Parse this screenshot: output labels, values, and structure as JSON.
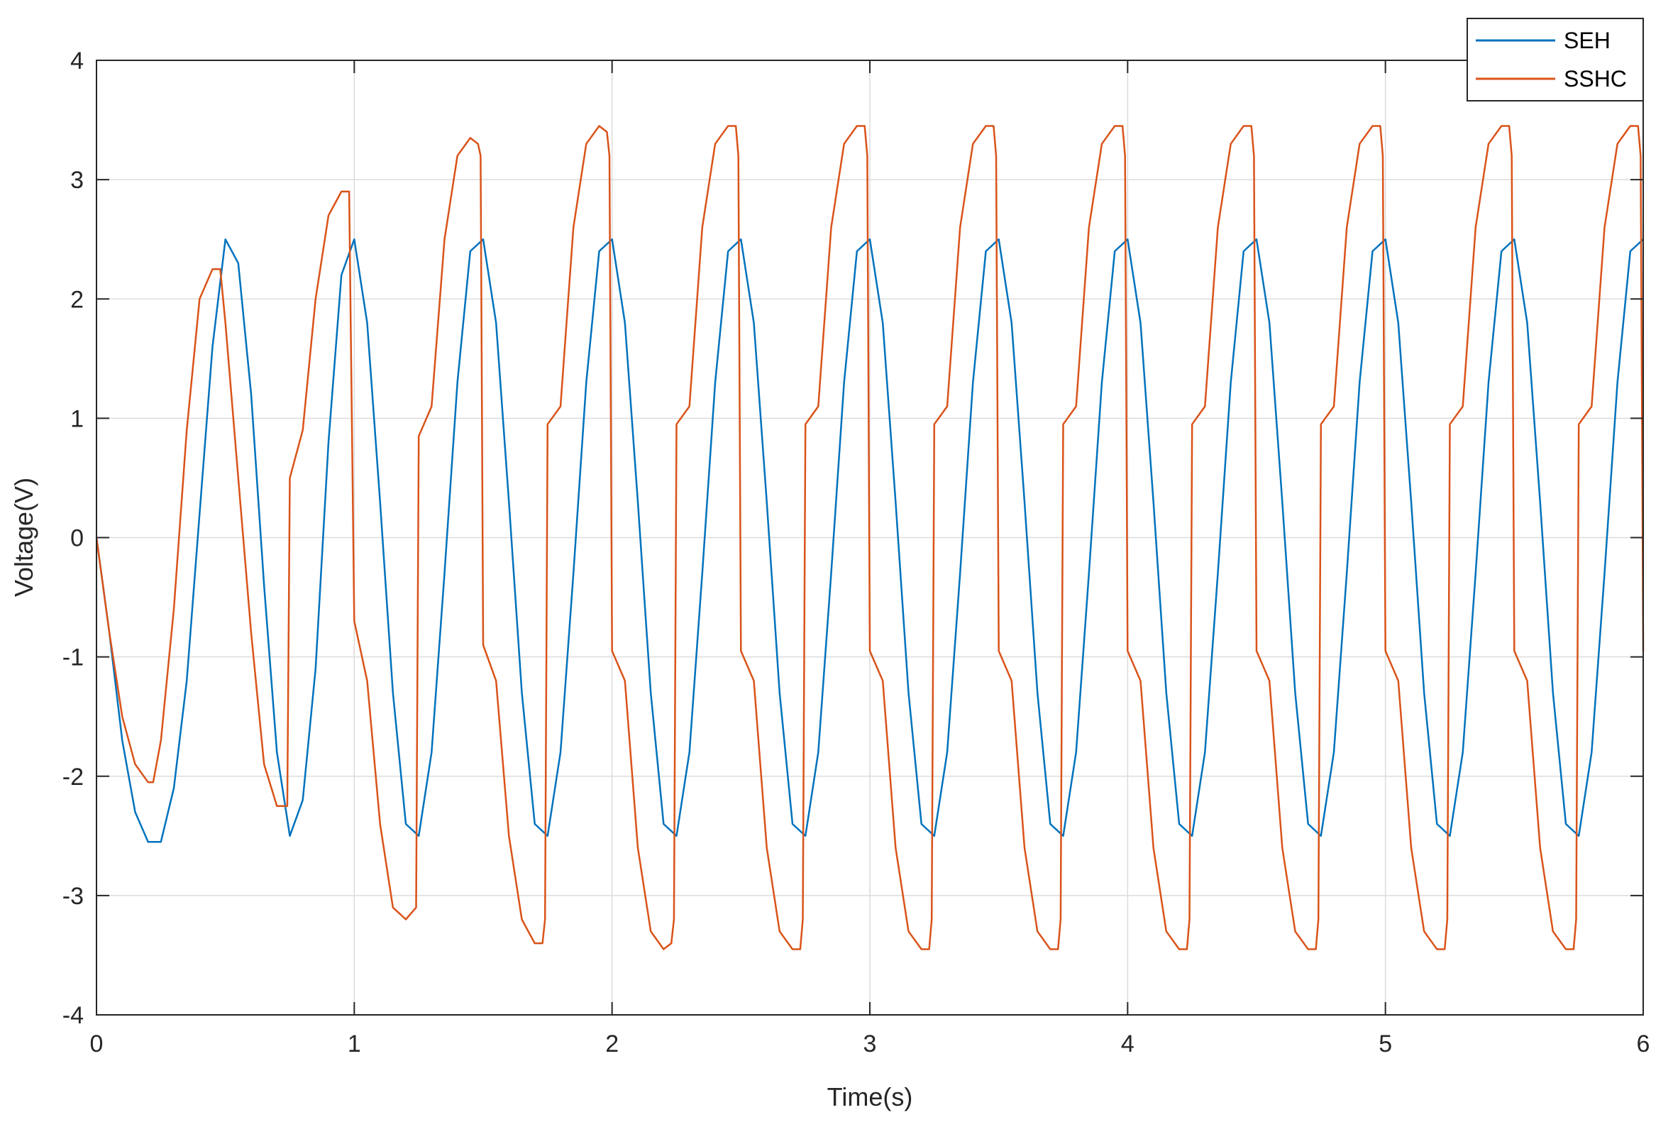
{
  "chart_data": {
    "type": "line",
    "title": "",
    "xlabel": "Time(s)",
    "ylabel": "Voltage(V)",
    "xlim": [
      0,
      6
    ],
    "ylim": [
      -4,
      4
    ],
    "xticks": [
      0,
      1,
      2,
      3,
      4,
      5,
      6
    ],
    "yticks": [
      -4,
      -3,
      -2,
      -1,
      0,
      1,
      2,
      3,
      4
    ],
    "xtick_labels": [
      "0",
      "1",
      "2",
      "3",
      "4",
      "5",
      "6"
    ],
    "ytick_labels": [
      "-4",
      "-3",
      "-2",
      "-1",
      "0",
      "1",
      "2",
      "3",
      "4"
    ],
    "grid": true,
    "legend_position": "top-right",
    "series": [
      {
        "name": "SEH",
        "color": "#0072BD",
        "description_free": true,
        "x": [
          0,
          0.05,
          0.1,
          0.15,
          0.2,
          0.25,
          0.3,
          0.35,
          0.4,
          0.45,
          0.5,
          0.55,
          0.6,
          0.65,
          0.7,
          0.75,
          0.8,
          0.85,
          0.9,
          0.95,
          1.0,
          1.05,
          1.1,
          1.15,
          1.2,
          1.25,
          1.3,
          1.35,
          1.4,
          1.45,
          1.5,
          1.55,
          1.6,
          1.65,
          1.7,
          1.75,
          1.8,
          1.85,
          1.9,
          1.95,
          2.0,
          2.05,
          2.1,
          2.15,
          2.2,
          2.25,
          2.3,
          2.35,
          2.4,
          2.45,
          2.5,
          2.55,
          2.6,
          2.65,
          2.7,
          2.75,
          2.8,
          2.85,
          2.9,
          2.95,
          3.0,
          3.05,
          3.1,
          3.15,
          3.2,
          3.25,
          3.3,
          3.35,
          3.4,
          3.45,
          3.5,
          3.55,
          3.6,
          3.65,
          3.7,
          3.75,
          3.8,
          3.85,
          3.9,
          3.95,
          4.0,
          4.05,
          4.1,
          4.15,
          4.2,
          4.25,
          4.3,
          4.35,
          4.4,
          4.45,
          4.5,
          4.55,
          4.6,
          4.65,
          4.7,
          4.75,
          4.8,
          4.85,
          4.9,
          4.95,
          5.0,
          5.05,
          5.1,
          5.15,
          5.2,
          5.25,
          5.3,
          5.35,
          5.4,
          5.45,
          5.5,
          5.55,
          5.6,
          5.65,
          5.7,
          5.75,
          5.8,
          5.85,
          5.9,
          5.95,
          6.0
        ],
        "y": [
          0,
          -0.8,
          -1.7,
          -2.3,
          -2.55,
          -2.55,
          -2.1,
          -1.2,
          0.2,
          1.6,
          2.5,
          2.3,
          1.2,
          -0.4,
          -1.8,
          -2.5,
          -2.2,
          -1.1,
          0.8,
          2.2,
          2.5,
          1.8,
          0.3,
          -1.3,
          -2.4,
          -2.5,
          -1.8,
          -0.3,
          1.3,
          2.4,
          2.5,
          1.8,
          0.3,
          -1.3,
          -2.4,
          -2.5,
          -1.8,
          -0.3,
          1.3,
          2.4,
          2.5,
          1.8,
          0.3,
          -1.3,
          -2.4,
          -2.5,
          -1.8,
          -0.3,
          1.3,
          2.4,
          2.5,
          1.8,
          0.3,
          -1.3,
          -2.4,
          -2.5,
          -1.8,
          -0.3,
          1.3,
          2.4,
          2.5,
          1.8,
          0.3,
          -1.3,
          -2.4,
          -2.5,
          -1.8,
          -0.3,
          1.3,
          2.4,
          2.5,
          1.8,
          0.3,
          -1.3,
          -2.4,
          -2.5,
          -1.8,
          -0.3,
          1.3,
          2.4,
          2.5,
          1.8,
          0.3,
          -1.3,
          -2.4,
          -2.5,
          -1.8,
          -0.3,
          1.3,
          2.4,
          2.5,
          1.8,
          0.3,
          -1.3,
          -2.4,
          -2.5,
          -1.8,
          -0.3,
          1.3,
          2.4,
          2.5,
          1.8,
          0.3,
          -1.3,
          -2.4,
          -2.5,
          -1.8,
          -0.3,
          1.3,
          2.4,
          2.5,
          1.8,
          0.3,
          -1.3,
          -2.4,
          -2.5,
          -1.8,
          -0.3,
          1.3,
          2.4,
          2.5
        ]
      },
      {
        "name": "SSHC",
        "color": "#D95319",
        "x": [
          0,
          0.05,
          0.1,
          0.15,
          0.2,
          0.22,
          0.25,
          0.3,
          0.35,
          0.4,
          0.45,
          0.48,
          0.5,
          0.55,
          0.6,
          0.65,
          0.7,
          0.74,
          0.75,
          0.8,
          0.85,
          0.9,
          0.95,
          0.98,
          1.0,
          1.05,
          1.1,
          1.15,
          1.2,
          1.24,
          1.25,
          1.3,
          1.35,
          1.4,
          1.45,
          1.48,
          1.49,
          1.5,
          1.55,
          1.6,
          1.65,
          1.7,
          1.73,
          1.74,
          1.75,
          1.8,
          1.85,
          1.9,
          1.95,
          1.98,
          1.99,
          2.0,
          2.05,
          2.1,
          2.15,
          2.2,
          2.23,
          2.24,
          2.25,
          2.3,
          2.35,
          2.4,
          2.45,
          2.48,
          2.49,
          2.5,
          2.55,
          2.6,
          2.65,
          2.7,
          2.73,
          2.74,
          2.75,
          2.8,
          2.85,
          2.9,
          2.95,
          2.98,
          2.99,
          3.0,
          3.05,
          3.1,
          3.15,
          3.2,
          3.23,
          3.24,
          3.25,
          3.3,
          3.35,
          3.4,
          3.45,
          3.48,
          3.49,
          3.5,
          3.55,
          3.6,
          3.65,
          3.7,
          3.73,
          3.74,
          3.75,
          3.8,
          3.85,
          3.9,
          3.95,
          3.98,
          3.99,
          4.0,
          4.05,
          4.1,
          4.15,
          4.2,
          4.23,
          4.24,
          4.25,
          4.3,
          4.35,
          4.4,
          4.45,
          4.48,
          4.49,
          4.5,
          4.55,
          4.6,
          4.65,
          4.7,
          4.73,
          4.74,
          4.75,
          4.8,
          4.85,
          4.9,
          4.95,
          4.98,
          4.99,
          5.0,
          5.05,
          5.1,
          5.15,
          5.2,
          5.23,
          5.24,
          5.25,
          5.3,
          5.35,
          5.4,
          5.45,
          5.48,
          5.49,
          5.5,
          5.55,
          5.6,
          5.65,
          5.7,
          5.73,
          5.74,
          5.75,
          5.8,
          5.85,
          5.9,
          5.95,
          5.98,
          5.99,
          6.0
        ],
        "y": [
          0,
          -0.8,
          -1.5,
          -1.9,
          -2.05,
          -2.05,
          -1.7,
          -0.6,
          0.9,
          2.0,
          2.25,
          2.25,
          1.8,
          0.5,
          -0.8,
          -1.9,
          -2.25,
          -2.25,
          0.5,
          0.9,
          2.0,
          2.7,
          2.9,
          2.9,
          -0.7,
          -1.2,
          -2.4,
          -3.1,
          -3.2,
          -3.1,
          0.85,
          1.1,
          2.5,
          3.2,
          3.35,
          3.3,
          3.2,
          -0.9,
          -1.2,
          -2.5,
          -3.2,
          -3.4,
          -3.4,
          -3.2,
          0.95,
          1.1,
          2.6,
          3.3,
          3.45,
          3.4,
          3.2,
          -0.95,
          -1.2,
          -2.6,
          -3.3,
          -3.45,
          -3.4,
          -3.2,
          0.95,
          1.1,
          2.6,
          3.3,
          3.45,
          3.45,
          3.2,
          -0.95,
          -1.2,
          -2.6,
          -3.3,
          -3.45,
          -3.45,
          -3.2,
          0.95,
          1.1,
          2.6,
          3.3,
          3.45,
          3.45,
          3.2,
          -0.95,
          -1.2,
          -2.6,
          -3.3,
          -3.45,
          -3.45,
          -3.2,
          0.95,
          1.1,
          2.6,
          3.3,
          3.45,
          3.45,
          3.2,
          -0.95,
          -1.2,
          -2.6,
          -3.3,
          -3.45,
          -3.45,
          -3.2,
          0.95,
          1.1,
          2.6,
          3.3,
          3.45,
          3.45,
          3.2,
          -0.95,
          -1.2,
          -2.6,
          -3.3,
          -3.45,
          -3.45,
          -3.2,
          0.95,
          1.1,
          2.6,
          3.3,
          3.45,
          3.45,
          3.2,
          -0.95,
          -1.2,
          -2.6,
          -3.3,
          -3.45,
          -3.45,
          -3.2,
          0.95,
          1.1,
          2.6,
          3.3,
          3.45,
          3.45,
          3.2,
          -0.95,
          -1.2,
          -2.6,
          -3.3,
          -3.45,
          -3.45,
          -3.2,
          0.95,
          1.1,
          2.6,
          3.3,
          3.45,
          3.45,
          3.2,
          -0.95,
          -1.2,
          -2.6,
          -3.3,
          -3.45,
          -3.45,
          -3.2,
          0.95,
          1.1,
          2.6,
          3.3,
          3.45,
          3.45,
          3.2,
          -0.95
        ]
      }
    ]
  }
}
